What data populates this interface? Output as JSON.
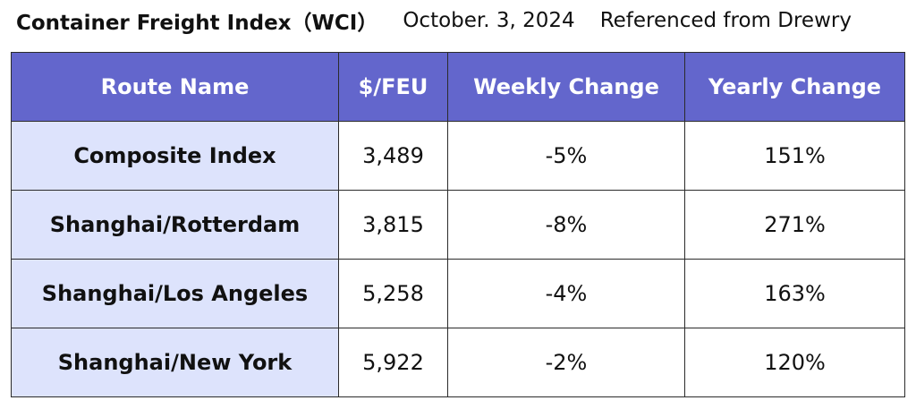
{
  "header": {
    "title": "Container Freight Index（WCI）",
    "date": "October. 3, 2024",
    "source": "Referenced from Drewry"
  },
  "table": {
    "columns": [
      "Route Name",
      "$/FEU",
      "Weekly Change",
      "Yearly Change"
    ],
    "rows": [
      [
        "Composite Index",
        "3,489",
        "-5%",
        "151%"
      ],
      [
        "Shanghai/Rotterdam",
        "3,815",
        "-8%",
        "271%"
      ],
      [
        "Shanghai/Los Angeles",
        "5,258",
        "-4%",
        "163%"
      ],
      [
        "Shanghai/New York",
        "5,922",
        "-2%",
        "120%"
      ]
    ]
  }
}
